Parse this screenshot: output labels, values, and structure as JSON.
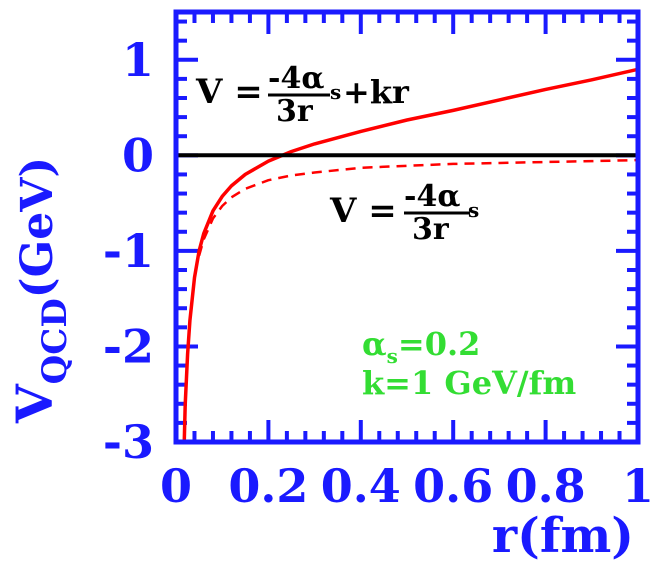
{
  "chart_data": {
    "type": "line",
    "xlabel": "r(fm)",
    "ylabel": {
      "main": "V",
      "subscript": "QCD",
      "unit": "(GeV)"
    },
    "xlim": [
      0,
      1
    ],
    "ylim": [
      -3,
      1.5
    ],
    "x_ticks": [
      "0",
      "0.2",
      "0.4",
      "0.6",
      "0.8",
      "1"
    ],
    "y_ticks": [
      "-3",
      "-2",
      "-1",
      "0",
      "1"
    ],
    "series": [
      {
        "style": "solid",
        "color": "#ff0000",
        "x": [
          0.018,
          0.02,
          0.025,
          0.03,
          0.04,
          0.05,
          0.06,
          0.08,
          0.1,
          0.12,
          0.15,
          0.2,
          0.25,
          0.3,
          0.4,
          0.5,
          0.6,
          0.7,
          0.8,
          0.9,
          1.0
        ],
        "y": [
          -2.98,
          -2.61,
          -2.08,
          -1.73,
          -1.28,
          -1.0,
          -0.82,
          -0.58,
          -0.43,
          -0.32,
          -0.2,
          -0.06,
          0.04,
          0.12,
          0.25,
          0.37,
          0.47,
          0.58,
          0.69,
          0.79,
          0.9
        ]
      },
      {
        "style": "dashed",
        "color": "#ff0000",
        "x": [
          0.05,
          0.06,
          0.08,
          0.1,
          0.12,
          0.15,
          0.2,
          0.25,
          0.3,
          0.4,
          0.5,
          0.6,
          0.7,
          0.8,
          0.9,
          1.0
        ],
        "y": [
          -1.05,
          -0.88,
          -0.66,
          -0.53,
          -0.44,
          -0.35,
          -0.26,
          -0.21,
          -0.18,
          -0.13,
          -0.11,
          -0.09,
          -0.08,
          -0.07,
          -0.06,
          -0.05
        ]
      },
      {
        "style": "solid",
        "color": "#000000",
        "x": [
          0,
          1
        ],
        "y": [
          0,
          0
        ]
      }
    ],
    "annotations": {
      "full_formula": {
        "lhs": "V = ",
        "num": "-4α",
        "sub": "s",
        "den": "3r",
        "tail": "+kr"
      },
      "coulomb_formula": {
        "lhs": "V = ",
        "num": "-4α",
        "sub": "s",
        "den": "3r"
      },
      "params": {
        "alpha_main": "α",
        "alpha_sub": "s",
        "alpha_value": "=0.2",
        "k_text": "k=1 GeV/fm"
      }
    },
    "colors": {
      "axis": "#1a1aff",
      "curve": "#ff0000",
      "params": "#33dd33",
      "zero_line": "#000000"
    }
  }
}
